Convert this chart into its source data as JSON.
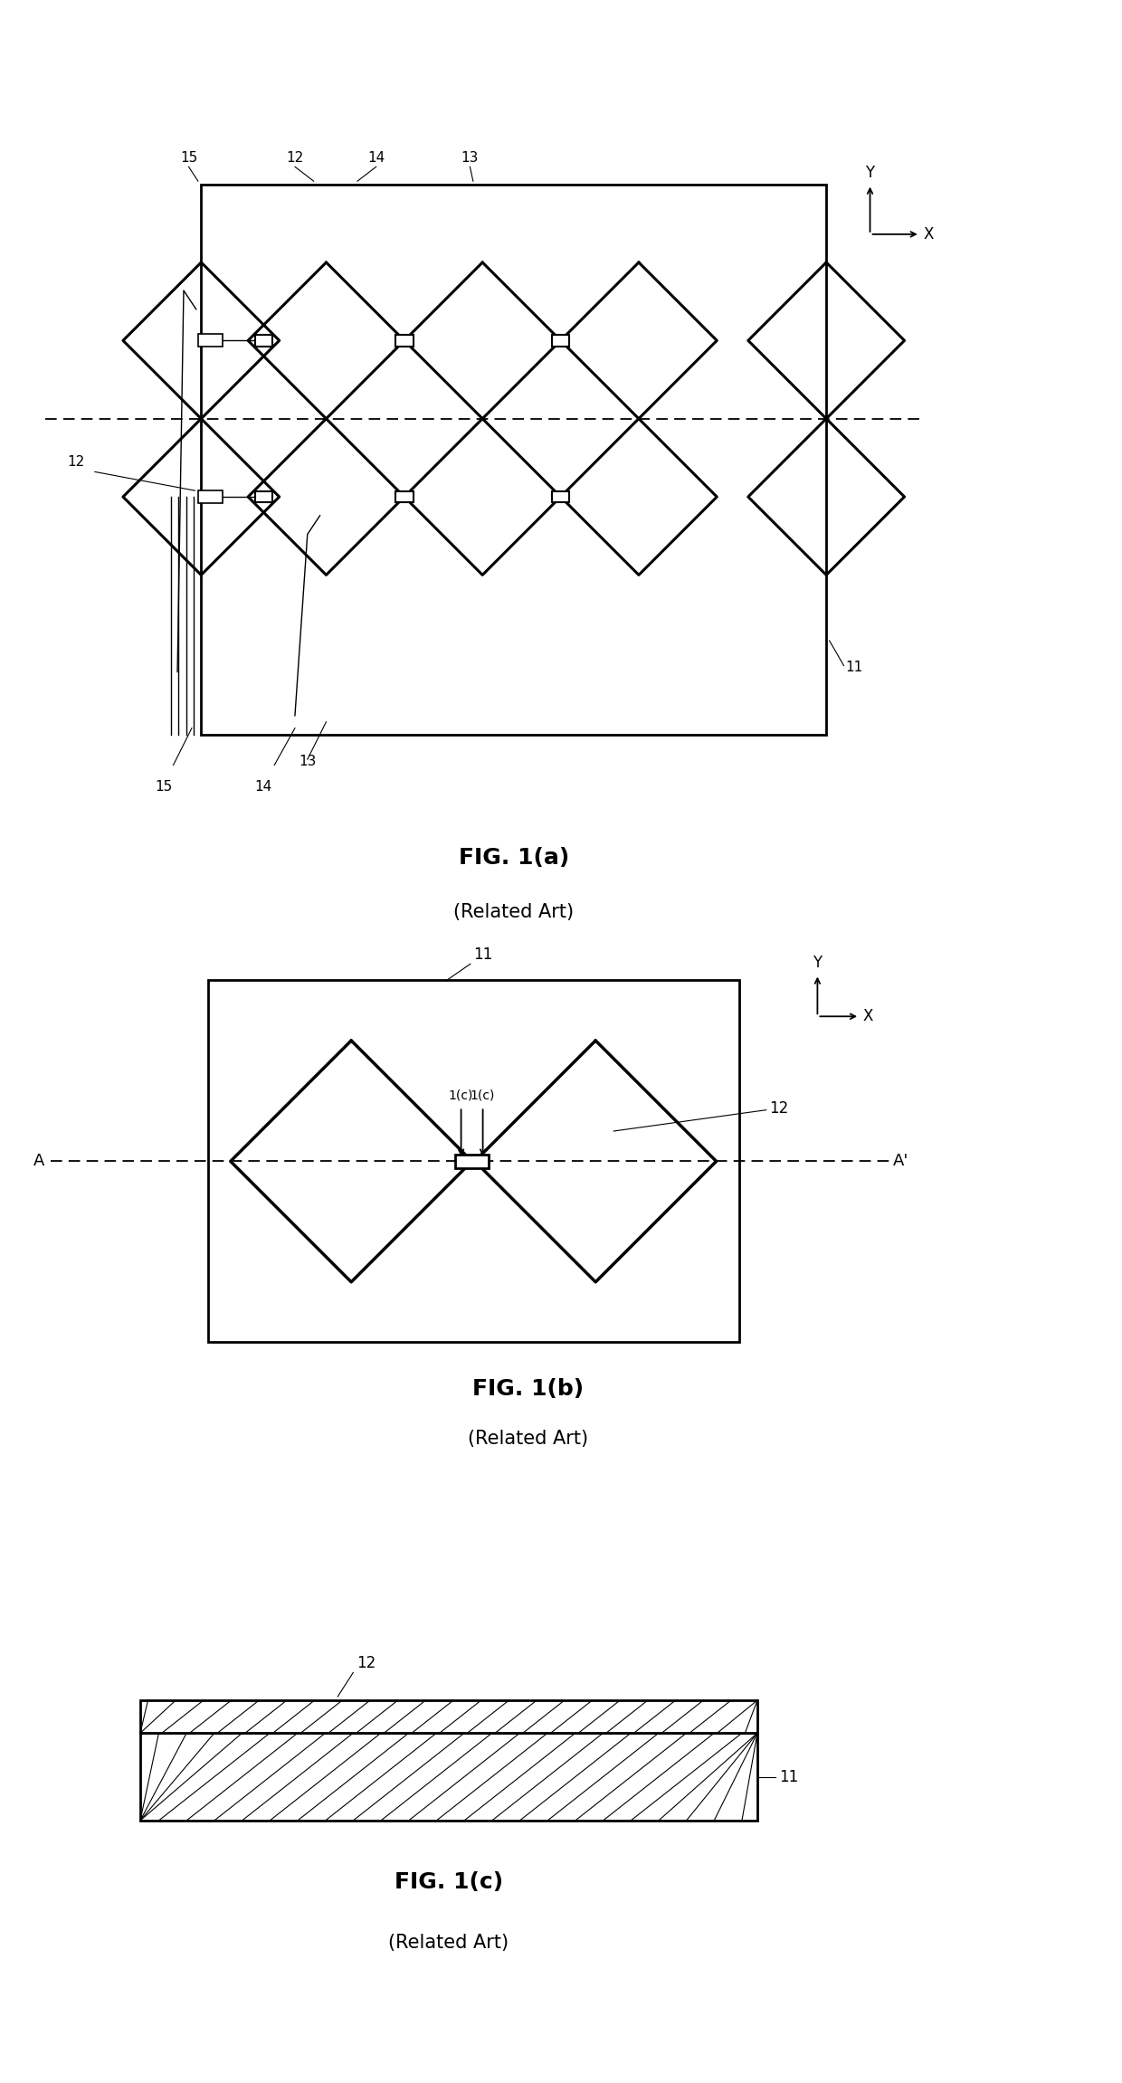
{
  "bg_color": "#ffffff",
  "line_color": "#000000",
  "fig_width": 12.4,
  "fig_height": 23.02,
  "fig1a_label": "FIG. 1(a)",
  "fig1a_sub": "(Related Art)",
  "fig1b_label": "FIG. 1(b)",
  "fig1b_sub": "(Related Art)",
  "fig1c_label": "FIG. 1(c)",
  "fig1c_sub": "(Related Art)"
}
